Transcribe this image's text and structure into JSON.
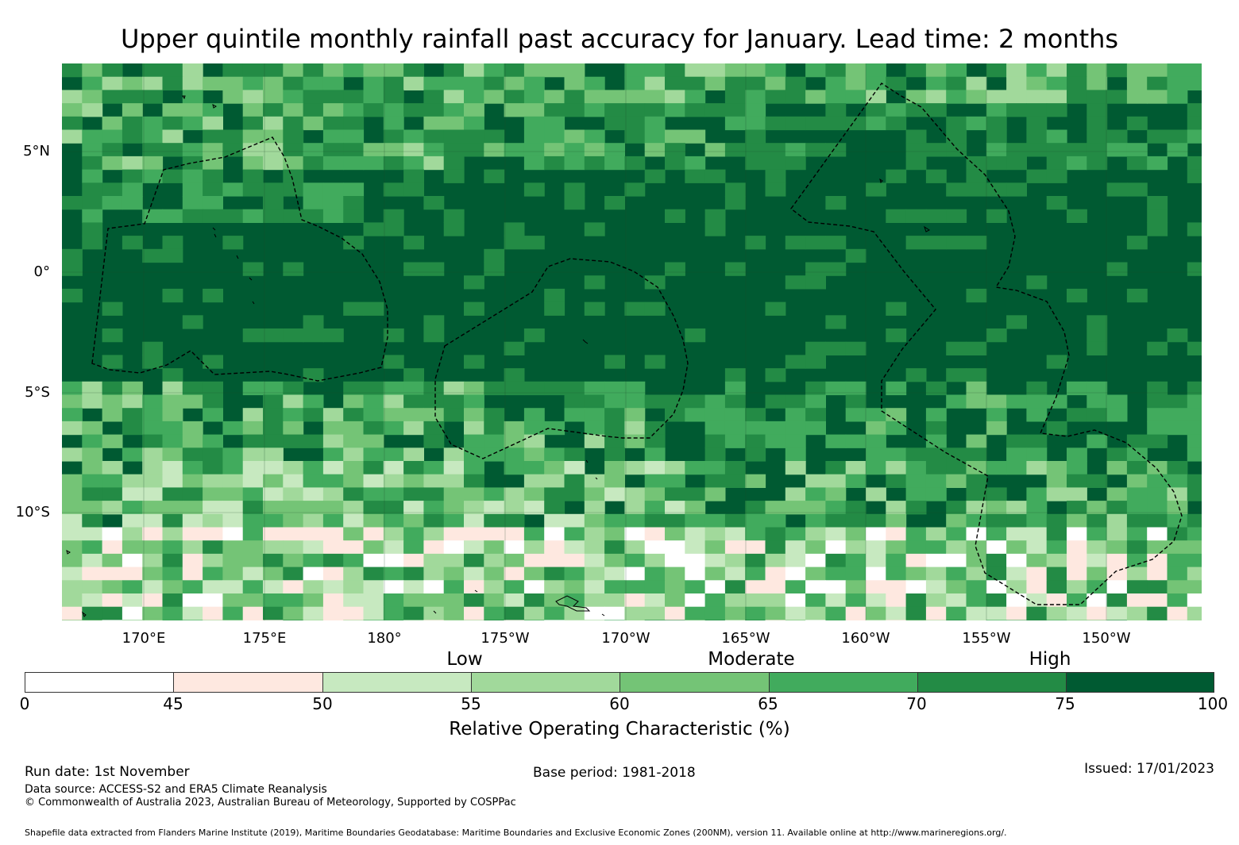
{
  "title": "Upper quintile monthly rainfall past accuracy for January. Lead time: 2 months",
  "map": {
    "lat_labels": [
      "5°N",
      "0°",
      "5°S",
      "10°S"
    ],
    "lon_labels": [
      "170°E",
      "175°E",
      "180°",
      "175°W",
      "170°W",
      "165°W",
      "160°W",
      "155°W",
      "150°W"
    ],
    "extent": {
      "lon_min": 166.6,
      "lon_max": 213.7,
      "lat_min": -14.5,
      "lat_max": 8.6
    },
    "grid_resolution_deg": 0.83,
    "colors": {
      "c0": "#ffffff",
      "c45": "#fee8e0",
      "c50": "#c7e9c0",
      "c55": "#a1d99b",
      "c60": "#74c476",
      "c65": "#41ab5d",
      "c70": "#238b45",
      "c75": "#005a32",
      "coast": "#000000",
      "eez": "#000000"
    }
  },
  "categories": [
    "Low",
    "Moderate",
    "High"
  ],
  "colorbar": {
    "ticks": [
      "0",
      "45",
      "50",
      "55",
      "60",
      "65",
      "70",
      "75",
      "100"
    ],
    "label": "Relative Operating Characteristic (%)",
    "bins": [
      {
        "min": 0,
        "max": 45,
        "color": "#ffffff"
      },
      {
        "min": 45,
        "max": 50,
        "color": "#fee8e0"
      },
      {
        "min": 50,
        "max": 55,
        "color": "#c7e9c0"
      },
      {
        "min": 55,
        "max": 60,
        "color": "#a1d99b"
      },
      {
        "min": 60,
        "max": 65,
        "color": "#74c476"
      },
      {
        "min": 65,
        "max": 70,
        "color": "#41ab5d"
      },
      {
        "min": 70,
        "max": 75,
        "color": "#238b45"
      },
      {
        "min": 75,
        "max": 100,
        "color": "#005a32"
      }
    ]
  },
  "footer": {
    "run_date": "Run date: 1st November",
    "base_period": "Base period: 1981-2018",
    "issued": "Issued: 17/01/2023",
    "data_source": "Data source: ACCESS-S2 and ERA5 Climate Reanalysis",
    "copyright": "© Commonwealth of Australia 2023, Australian Bureau of Meteorology, Supported by COSPPac",
    "shapefile": "Shapefile data extracted from Flanders Marine Institute (2019), Maritime Boundaries Geodatabase: Maritime Boundaries and Exclusive Economic Zones (200NM), version 11. Available online at http://www.marineregions.org/."
  }
}
